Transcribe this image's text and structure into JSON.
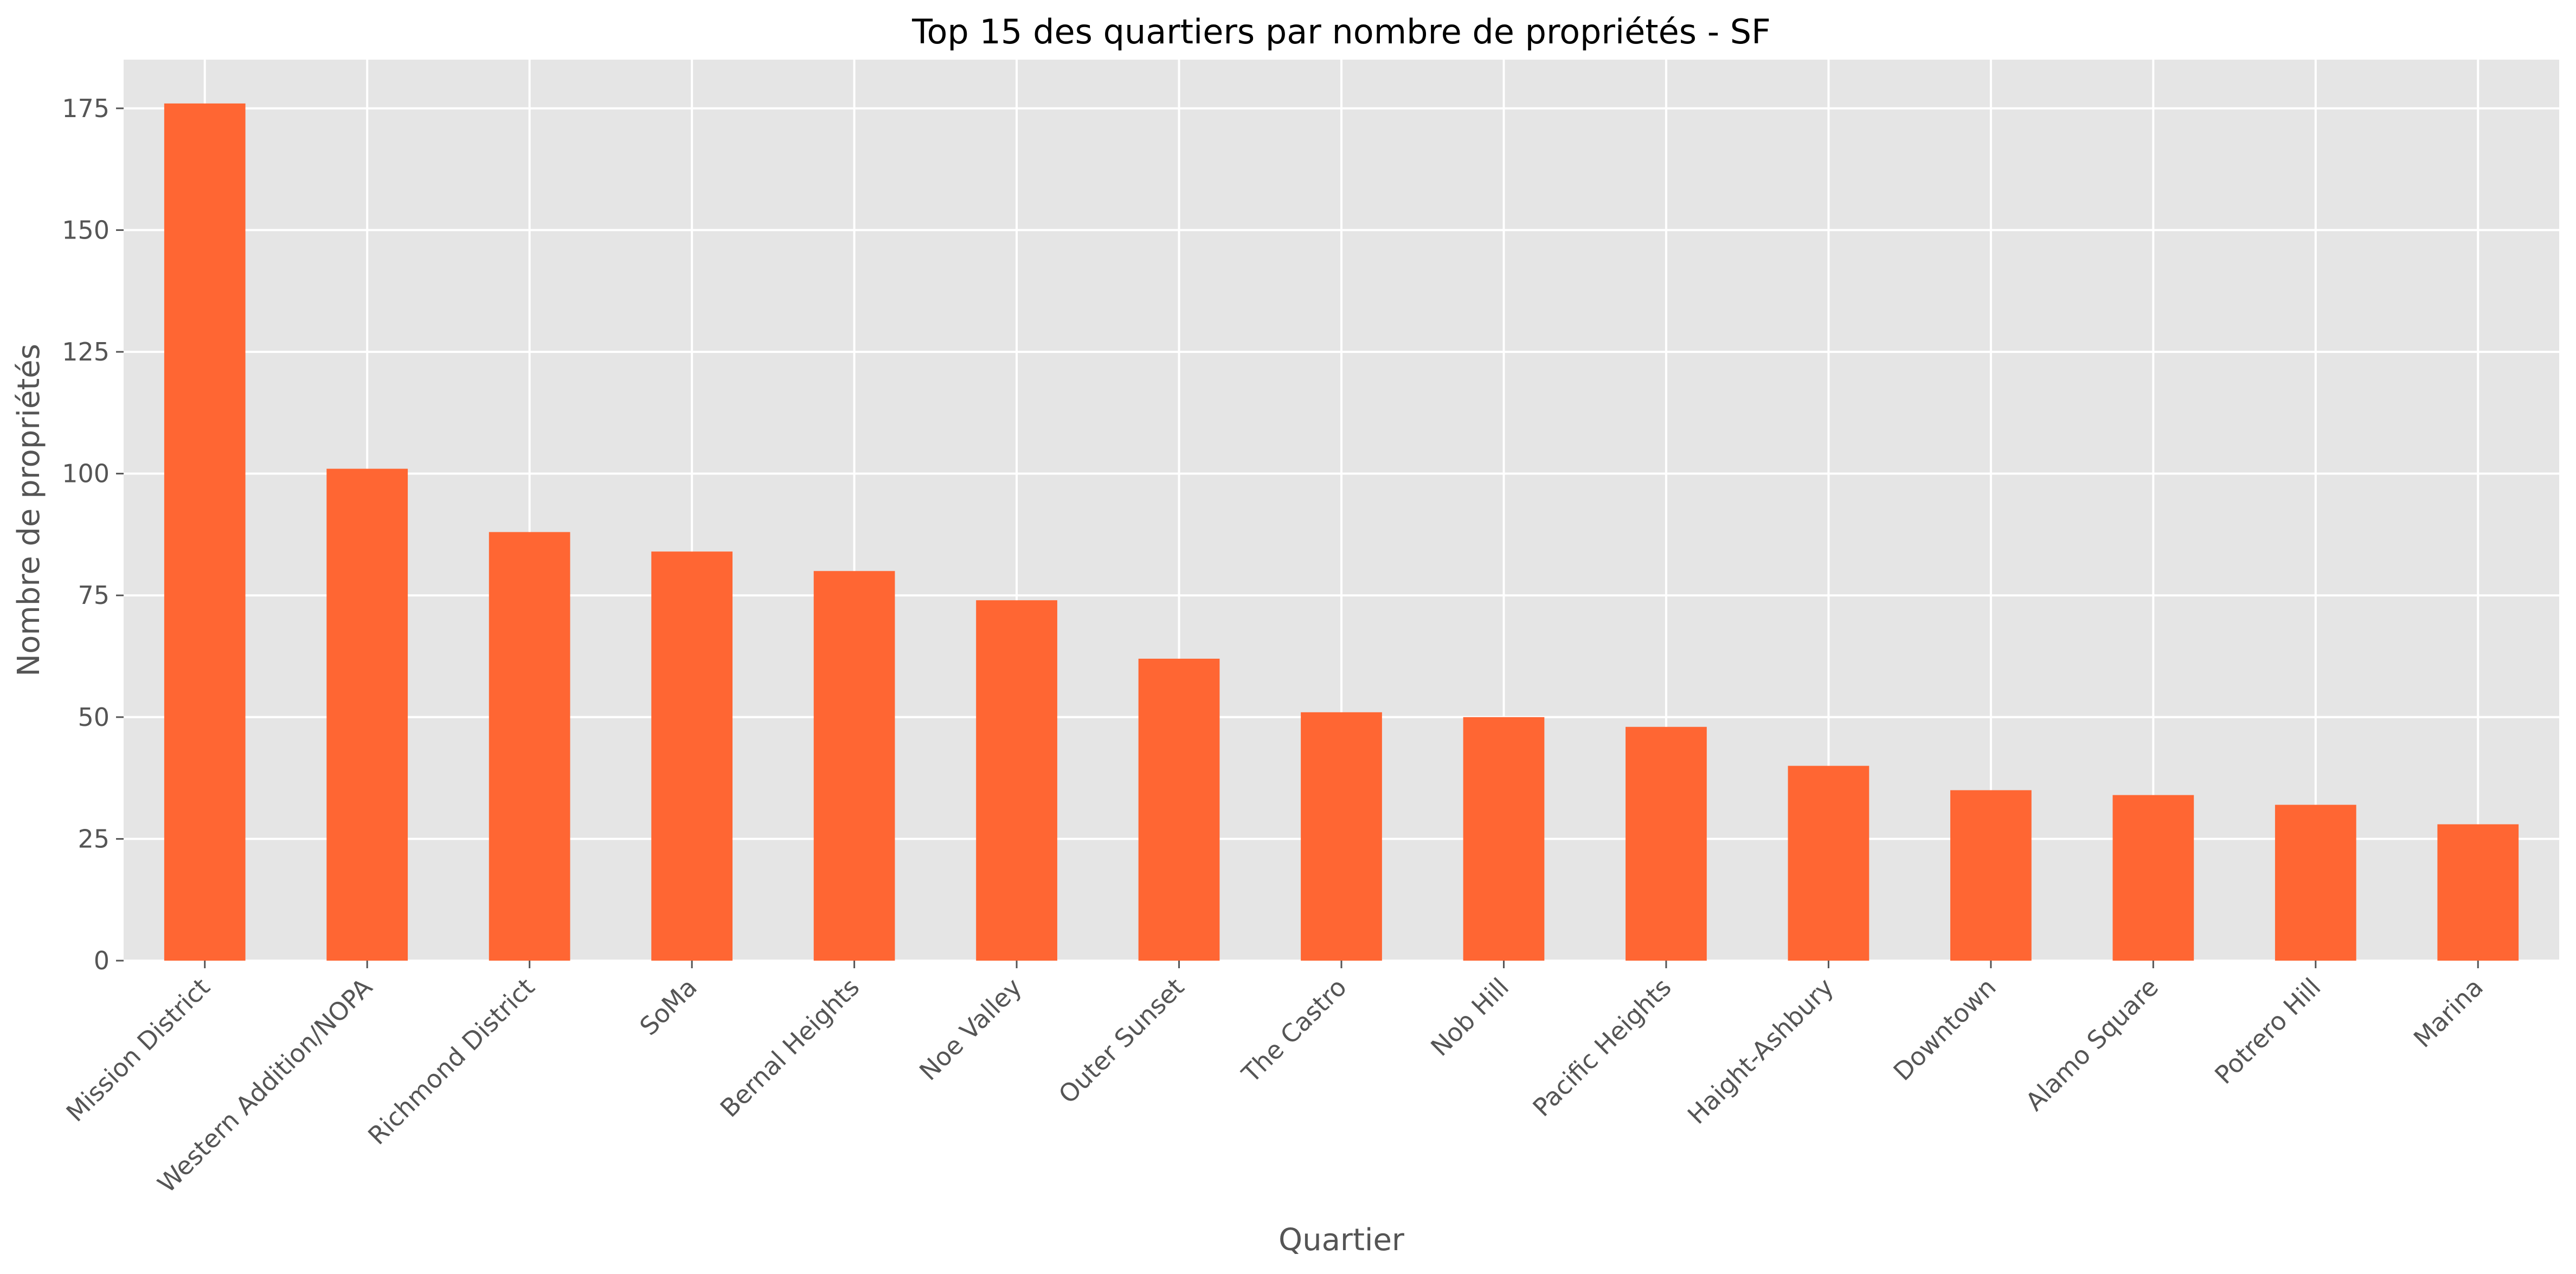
{
  "chart_data": {
    "type": "bar",
    "title": "Top 15 des quartiers par nombre de propriétés - SF",
    "xlabel": "Quartier",
    "ylabel": "Nombre de propriétés",
    "categories": [
      "Mission District",
      "Western Addition/NOPA",
      "Richmond District",
      "SoMa",
      "Bernal Heights",
      "Noe Valley",
      "Outer Sunset",
      "The Castro",
      "Nob Hill",
      "Pacific Heights",
      "Haight-Ashbury",
      "Downtown",
      "Alamo Square",
      "Potrero Hill",
      "Marina"
    ],
    "values": [
      176,
      101,
      88,
      84,
      80,
      74,
      62,
      51,
      50,
      48,
      40,
      35,
      34,
      32,
      28
    ],
    "ylim": [
      0,
      185
    ],
    "yticks": [
      0,
      25,
      50,
      75,
      100,
      125,
      150,
      175
    ],
    "grid": true,
    "bar_color": "#FF6633",
    "background_color": "#E5E5E5"
  }
}
